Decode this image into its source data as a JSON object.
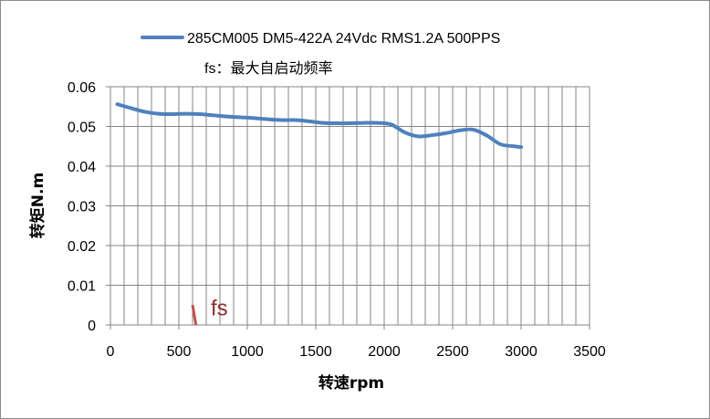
{
  "chart_data": {
    "type": "line",
    "xlabel": "转速rpm",
    "ylabel": "转矩N.m",
    "xlim": [
      0,
      3500
    ],
    "ylim": [
      0,
      0.06
    ],
    "x_ticks": [
      "0",
      "500",
      "1000",
      "1500",
      "2000",
      "2500",
      "3000",
      "3500"
    ],
    "y_ticks": [
      "0",
      "0.01",
      "0.02",
      "0.03",
      "0.04",
      "0.05",
      "0.06"
    ],
    "grid": true,
    "legend_placement": "top",
    "series": [
      {
        "name": "285CM005 DM5-422A 24Vdc RMS1.2A 500PPS",
        "color": "#4f81bd",
        "x": [
          50,
          150,
          250,
          350,
          450,
          550,
          650,
          750,
          850,
          950,
          1050,
          1150,
          1250,
          1350,
          1450,
          1550,
          1650,
          1750,
          1850,
          1950,
          2050,
          2150,
          2250,
          2350,
          2450,
          2550,
          2650,
          2750,
          2850,
          2950,
          3000
        ],
        "y": [
          0.0556,
          0.0546,
          0.0537,
          0.0532,
          0.0531,
          0.0532,
          0.0531,
          0.0528,
          0.0525,
          0.0523,
          0.0521,
          0.0518,
          0.0516,
          0.0516,
          0.0513,
          0.0509,
          0.0508,
          0.0508,
          0.0509,
          0.0509,
          0.0505,
          0.0485,
          0.0475,
          0.0478,
          0.0483,
          0.049,
          0.0492,
          0.0477,
          0.0455,
          0.045,
          0.0448
        ]
      }
    ],
    "fs_legend": "fs：最大自启动频率",
    "fs_marker": {
      "label": "fs",
      "color": "#c0504d",
      "x": [
        600,
        625
      ],
      "y": [
        0.005,
        0.0
      ]
    }
  }
}
